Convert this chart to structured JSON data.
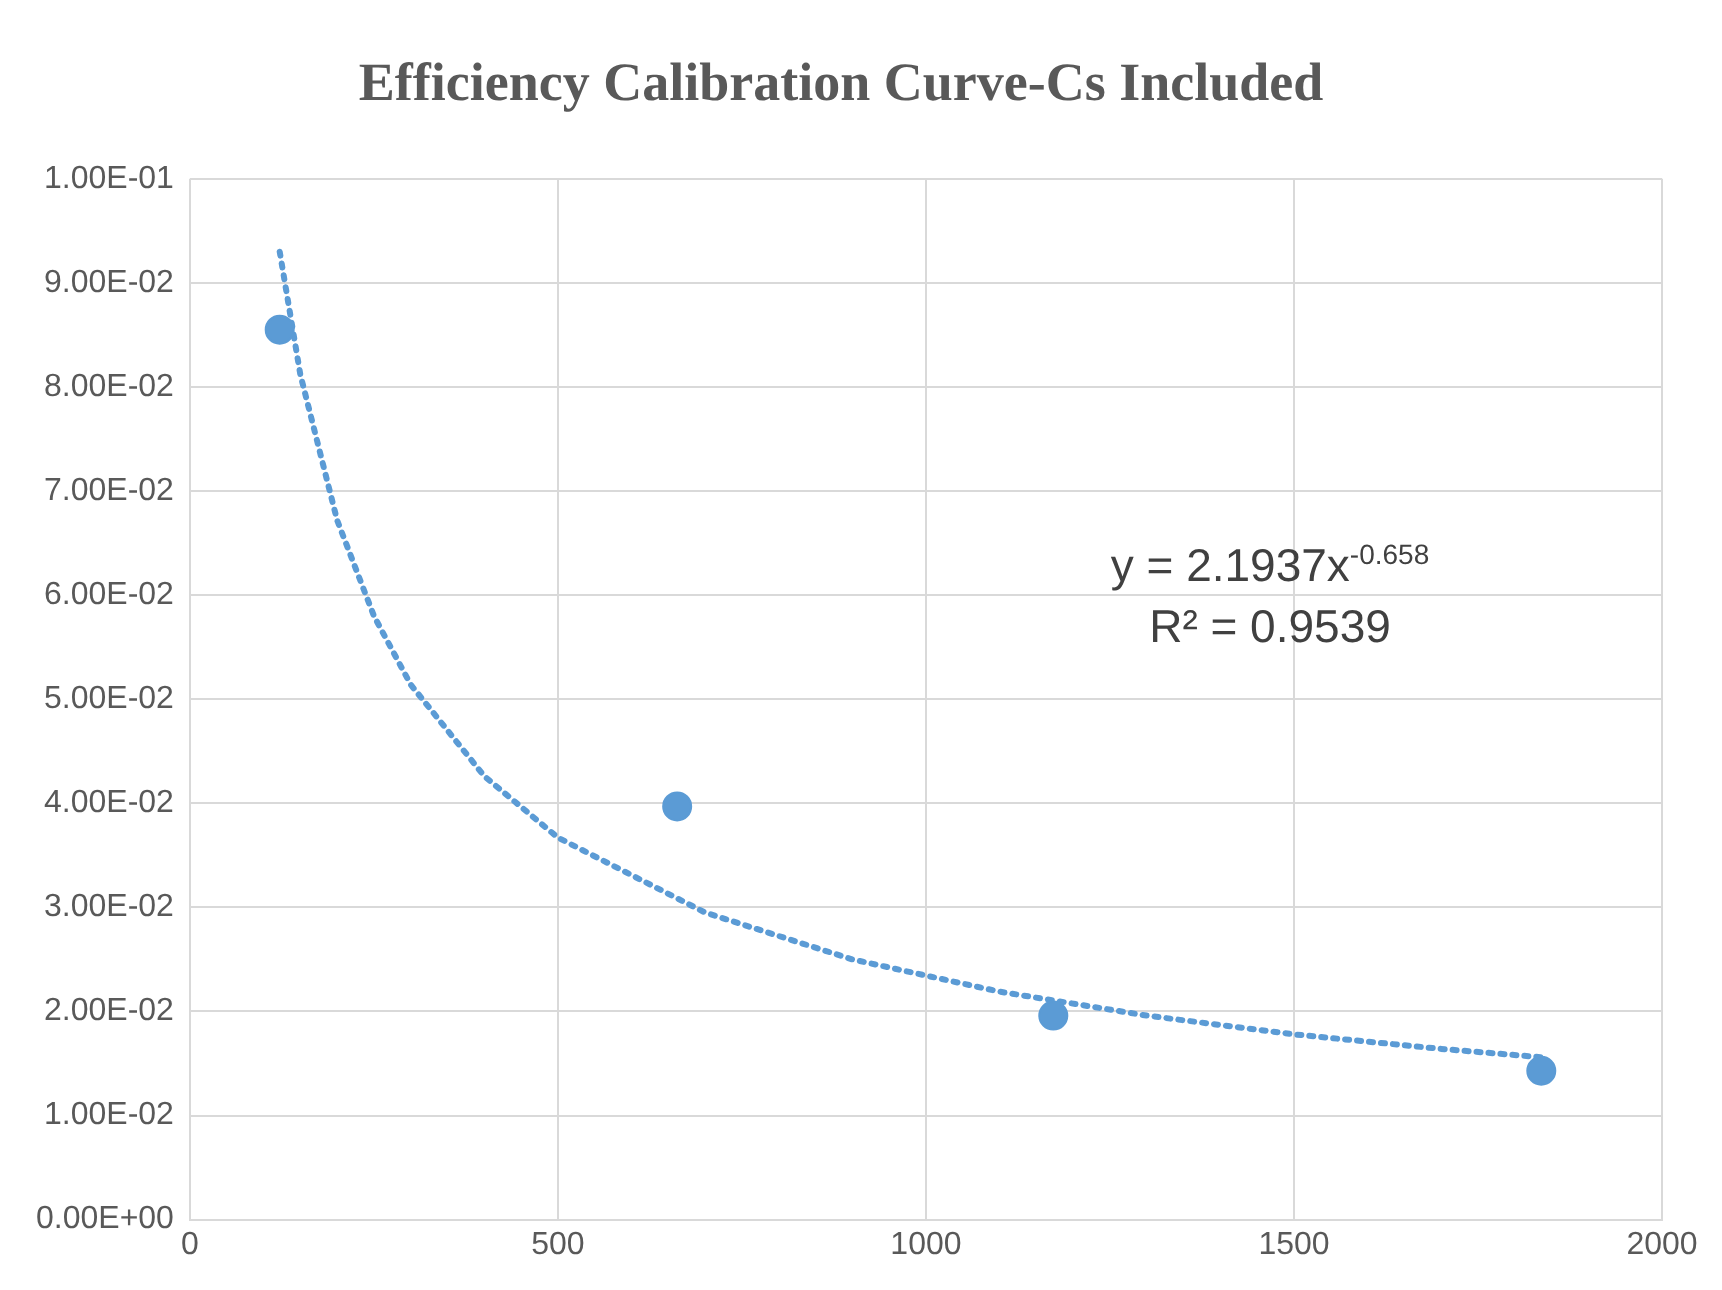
{
  "chart_data": {
    "type": "scatter",
    "title": "Efficiency Calibration Curve-Cs Included",
    "series": [
      {
        "color": "#5b9bd5",
        "marker": "circle",
        "x": [
          122,
          662,
          1173,
          1836
        ],
        "values": [
          0.0855,
          0.0397,
          0.0196,
          0.0143
        ]
      },
      {
        "type": "line",
        "marker": "none",
        "line_style": "dotted",
        "color": "#5b9bd5",
        "x": [
          122,
          150,
          200,
          250,
          300,
          400,
          500,
          700,
          900,
          1100,
          1300,
          1500,
          1700,
          1836
        ],
        "values": [
          0.093,
          0.0812,
          0.0672,
          0.058,
          0.0514,
          0.0426,
          0.0367,
          0.0295,
          0.025,
          0.0219,
          0.0196,
          0.0178,
          0.0164,
          0.0156
        ]
      }
    ],
    "xlim": [
      0,
      2000
    ],
    "xticks": [
      0,
      500,
      1000,
      1500,
      2000
    ],
    "ylim": [
      0,
      0.1
    ],
    "yticks": [
      {
        "value": 0,
        "label": "0.00E+00"
      },
      {
        "value": 0.01,
        "label": "1.00E-02"
      },
      {
        "value": 0.02,
        "label": "2.00E-02"
      },
      {
        "value": 0.03,
        "label": "3.00E-02"
      },
      {
        "value": 0.04,
        "label": "4.00E-02"
      },
      {
        "value": 0.05,
        "label": "5.00E-02"
      },
      {
        "value": 0.06,
        "label": "6.00E-02"
      },
      {
        "value": 0.07,
        "label": "7.00E-02"
      },
      {
        "value": 0.08,
        "label": "8.00E-02"
      },
      {
        "value": 0.09,
        "label": "9.00E-02"
      },
      {
        "value": 0.1,
        "label": "1.00E-01"
      }
    ],
    "grid": true,
    "annotations": [
      "y = 2.1937x$^{-0.658}$",
      "R² = 0.9539"
    ]
  }
}
